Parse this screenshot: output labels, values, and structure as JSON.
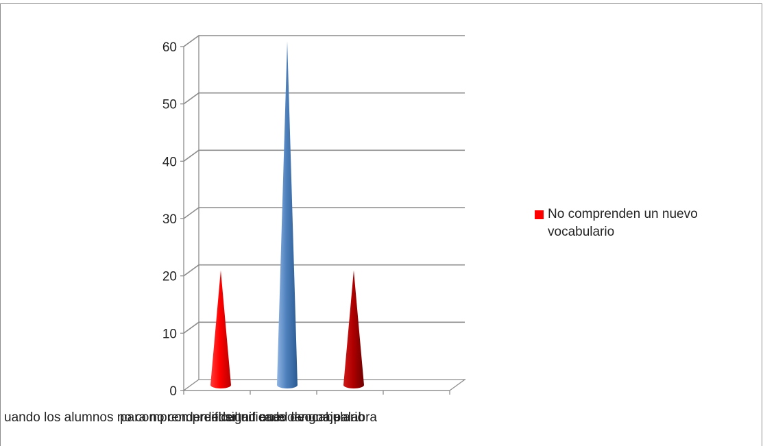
{
  "chart_data": {
    "type": "bar",
    "style": "3d-cone",
    "categories": [
      "cuando los alumnos no comprenden el significado de una palabra",
      "para no comprender un nuevo vocabulario",
      "dificultad en el lenguaje"
    ],
    "values": [
      20,
      60,
      20
    ],
    "bar_colors": [
      "#ff0000",
      "#4f81bd",
      "#c00000"
    ],
    "y_ticks": [
      "0",
      "10",
      "20",
      "30",
      "40",
      "50",
      "60"
    ],
    "ylim": [
      0,
      60
    ],
    "grid": true,
    "legend": {
      "position": "right",
      "entries": [
        {
          "label": "No comprenden un nuevo vocabulario",
          "color": "#ff0000"
        }
      ]
    },
    "x_labels_visible": [
      "uando los alumnos no comprenden el significado de una palabra",
      "para no comprender un nuevo vocabulario",
      "dificultad en el lenguaje"
    ]
  }
}
